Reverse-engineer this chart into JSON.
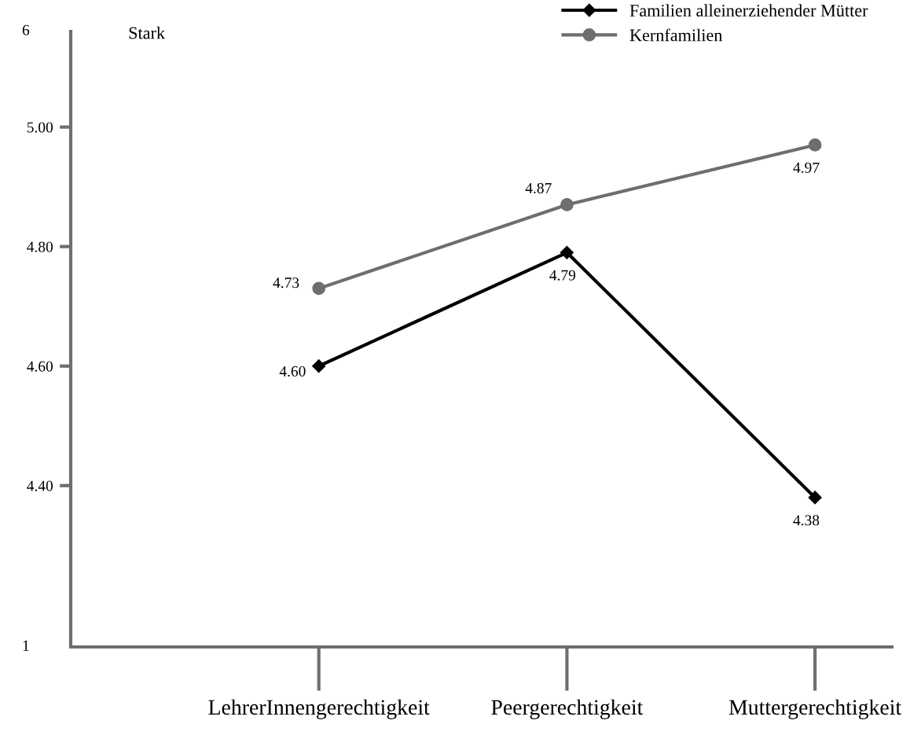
{
  "chart_data": {
    "type": "line",
    "categories": [
      "LehrerInnengerechtigkeit",
      "Peergerechtigkeit",
      "Muttergerechtigkeit"
    ],
    "series": [
      {
        "name": "Familien alleinerziehender Mütter",
        "color": "#000000",
        "marker": "diamond",
        "values": [
          4.6,
          4.79,
          4.38
        ],
        "value_labels": [
          "4.60",
          "4.79",
          "4.38"
        ]
      },
      {
        "name": "Kernfamilien",
        "color": "#6e6e6e",
        "marker": "circle",
        "values": [
          4.73,
          4.87,
          4.97
        ],
        "value_labels": [
          "4.73",
          "4.87",
          "4.97"
        ]
      }
    ],
    "ylim": [
      4.13,
      5.16
    ],
    "yticks": [
      {
        "value": 4.4,
        "label": "4.40"
      },
      {
        "value": 4.6,
        "label": "4.60"
      },
      {
        "value": 4.8,
        "label": "4.80"
      },
      {
        "value": 5.0,
        "label": "5.00"
      }
    ],
    "annotations": [
      "6",
      "Stark",
      "1"
    ],
    "grid": false,
    "legend": "top right",
    "line_style": "solid"
  }
}
